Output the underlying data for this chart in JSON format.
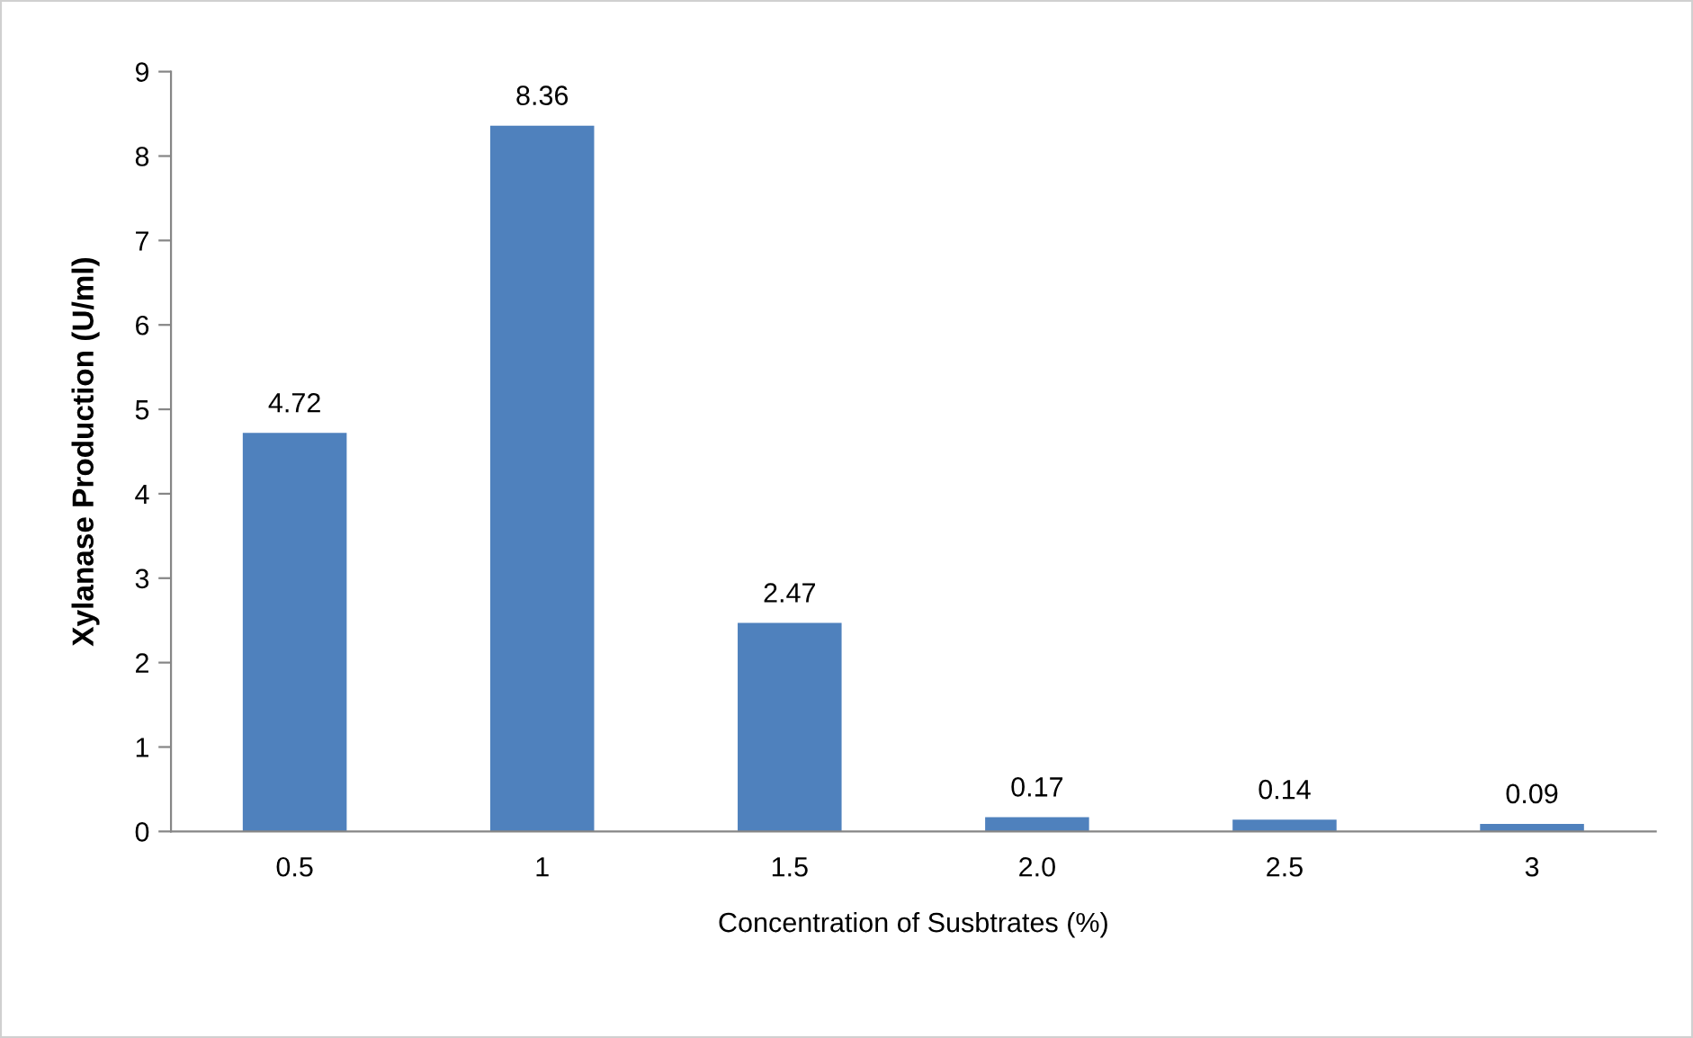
{
  "chart_data": {
    "type": "bar",
    "xlabel": "Concentration of Susbtrates (%)",
    "ylabel": "Xylanase Production (U/ml)",
    "categories": [
      "0.5",
      "1",
      "1.5",
      "2.0",
      "2.5",
      "3"
    ],
    "values": [
      4.72,
      8.36,
      2.47,
      0.17,
      0.14,
      0.09
    ],
    "color": "#4f81bd",
    "ylim": [
      0,
      9
    ],
    "yticks": [
      0,
      1,
      2,
      3,
      4,
      5,
      6,
      7,
      8,
      9
    ],
    "data_labels": true,
    "grid": false,
    "legend": false
  }
}
